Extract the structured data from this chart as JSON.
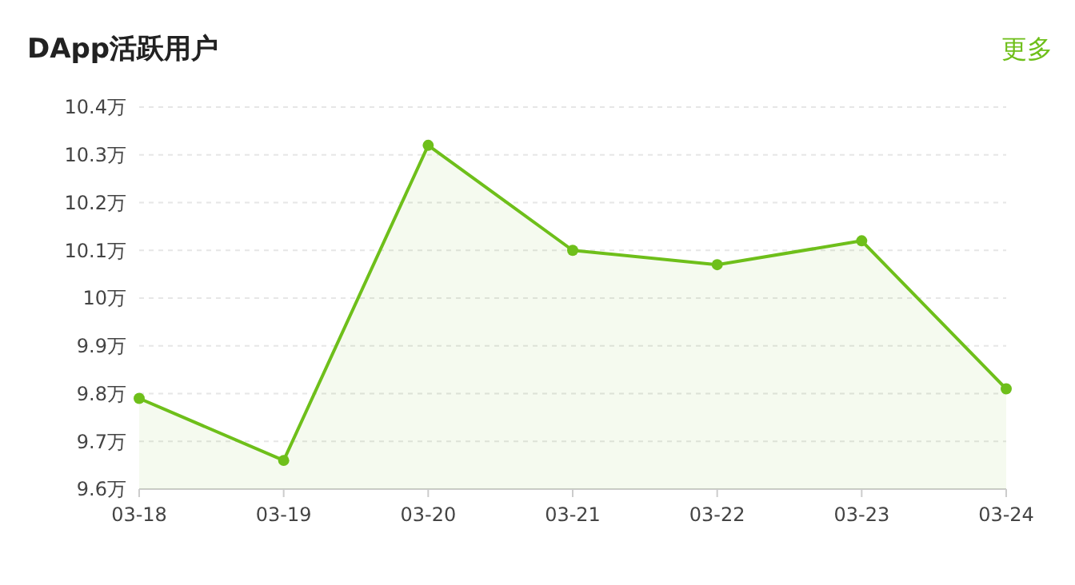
{
  "chart_data": {
    "type": "area",
    "title": "DApp活跃用户",
    "annotations": [
      "更多"
    ],
    "categories": [
      "03-18",
      "03-19",
      "03-20",
      "03-21",
      "03-22",
      "03-23",
      "03-24"
    ],
    "series": [
      {
        "color": "#6ebf1a",
        "values": [
          9.79,
          9.66,
          10.32,
          10.1,
          10.07,
          10.12,
          9.81
        ]
      }
    ],
    "ylim": [
      9.6,
      10.4
    ],
    "yticks": [
      {
        "value": 9.6,
        "label": "9.6万"
      },
      {
        "value": 9.7,
        "label": "9.7万"
      },
      {
        "value": 9.8,
        "label": "9.8万"
      },
      {
        "value": 9.9,
        "label": "9.9万"
      },
      {
        "value": 10,
        "label": "10万"
      },
      {
        "value": 10.1,
        "label": "10.1万"
      },
      {
        "value": 10.2,
        "label": "10.2万"
      },
      {
        "value": 10.3,
        "label": "10.3万"
      },
      {
        "value": 10.4,
        "label": "10.4万"
      }
    ],
    "grid": "y",
    "marker": "circle",
    "line_style": "solid"
  }
}
